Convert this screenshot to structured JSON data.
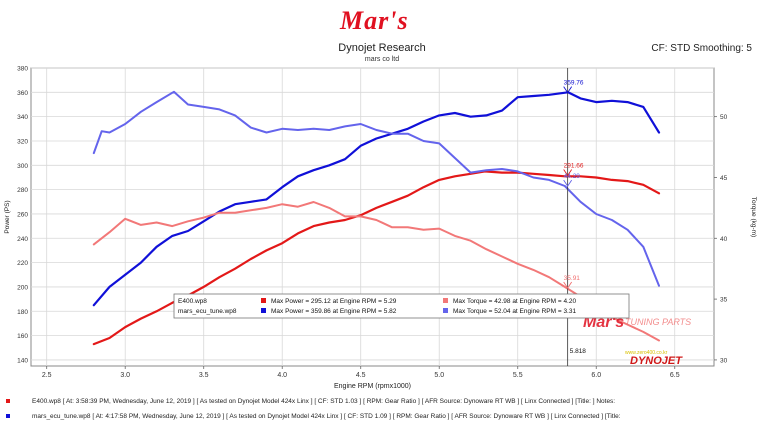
{
  "header": {
    "logo_text": "Mar's",
    "title": "Dynojet Research",
    "subtitle": "mars co ltd",
    "settings": "CF: STD Smoothing: 5"
  },
  "chart_data": {
    "type": "line",
    "xlabel": "Engine RPM (rpmx1000)",
    "xlabel_note": "zero400.co.kr",
    "ylabel_left": "Power (PS)",
    "ylabel_right": "Torque (kg-m)",
    "xlim": [
      2.4,
      6.75
    ],
    "ylim_left": [
      135,
      380
    ],
    "ylim_right": [
      29.5,
      54
    ],
    "x_ticks": [
      "2.5",
      "3.0",
      "3.5",
      "4.0",
      "4.5",
      "5.0",
      "5.5",
      "6.0",
      "6.5"
    ],
    "x_tick_values": [
      2.5,
      3.0,
      3.5,
      4.0,
      4.5,
      5.0,
      5.5,
      6.0,
      6.5
    ],
    "y_left_ticks": [
      140,
      160,
      180,
      200,
      220,
      240,
      260,
      280,
      300,
      320,
      340,
      360,
      380
    ],
    "y_right_ticks": [
      30,
      35,
      40,
      45,
      50
    ],
    "grid": true,
    "legend": {
      "placement": "bottom-center",
      "entries": [
        {
          "file": "E400.wp8",
          "power": "Max Power = 295.12 at Engine RPM = 5.29",
          "torque": "Max Torque = 42.98 at Engine RPM = 4.20"
        },
        {
          "file": "mars_ecu_tune.wp8",
          "power": "Max Power = 359.86 at Engine RPM = 5.82",
          "torque": "Max Torque = 52.04 at Engine RPM = 3.31"
        }
      ]
    },
    "cursor": {
      "x": 5.818,
      "label": "5.818",
      "readouts": [
        {
          "text": "359.76",
          "x": 5.818,
          "y": 359.76,
          "axis": "left",
          "color": "#1010d0"
        },
        {
          "text": "291.66",
          "x": 5.818,
          "y": 291.66,
          "axis": "left",
          "color": "#e02020"
        },
        {
          "text": "44.29",
          "x": 5.818,
          "y": 44.29,
          "axis": "right",
          "color": "#6060e8"
        },
        {
          "text": "35.91",
          "x": 5.818,
          "y": 35.91,
          "axis": "right",
          "color": "#f07070"
        }
      ]
    },
    "series": [
      {
        "name": "E400.wp8 Power",
        "axis": "left",
        "color": "#e31818",
        "width": 2.2,
        "x": [
          2.8,
          2.9,
          3.0,
          3.1,
          3.2,
          3.3,
          3.4,
          3.5,
          3.6,
          3.7,
          3.8,
          3.9,
          4.0,
          4.1,
          4.2,
          4.3,
          4.4,
          4.5,
          4.6,
          4.7,
          4.8,
          4.9,
          5.0,
          5.1,
          5.2,
          5.29,
          5.4,
          5.5,
          5.6,
          5.7,
          5.8,
          5.9,
          6.0,
          6.1,
          6.2,
          6.3,
          6.4
        ],
        "y": [
          153,
          158,
          167,
          174,
          180,
          187,
          193,
          200,
          208,
          215,
          223,
          230,
          236,
          244,
          250,
          253,
          255,
          259,
          265,
          270,
          275,
          282,
          288,
          291,
          293,
          295,
          294,
          294,
          293,
          292,
          291,
          291,
          290,
          288,
          287,
          284,
          277
        ]
      },
      {
        "name": "mars_ecu_tune.wp8 Power",
        "axis": "left",
        "color": "#1010d8",
        "width": 2.2,
        "x": [
          2.8,
          2.9,
          3.0,
          3.1,
          3.2,
          3.3,
          3.4,
          3.5,
          3.6,
          3.7,
          3.8,
          3.9,
          4.0,
          4.1,
          4.2,
          4.3,
          4.4,
          4.5,
          4.6,
          4.7,
          4.8,
          4.9,
          5.0,
          5.1,
          5.2,
          5.3,
          5.4,
          5.5,
          5.6,
          5.7,
          5.82,
          5.9,
          6.0,
          6.1,
          6.2,
          6.3,
          6.4
        ],
        "y": [
          185,
          200,
          210,
          220,
          233,
          242,
          246,
          254,
          262,
          268,
          270,
          272,
          282,
          291,
          296,
          300,
          305,
          316,
          322,
          326,
          330,
          336,
          341,
          343,
          340,
          341,
          345,
          356,
          357,
          358,
          360,
          355,
          352,
          353,
          352,
          348,
          327
        ]
      },
      {
        "name": "E400.wp8 Torque",
        "axis": "right",
        "color": "#f27878",
        "width": 2.0,
        "x": [
          2.8,
          2.9,
          3.0,
          3.1,
          3.2,
          3.3,
          3.4,
          3.5,
          3.6,
          3.7,
          3.8,
          3.9,
          4.0,
          4.1,
          4.2,
          4.3,
          4.4,
          4.5,
          4.6,
          4.7,
          4.8,
          4.9,
          5.0,
          5.1,
          5.2,
          5.3,
          5.4,
          5.5,
          5.6,
          5.7,
          5.8,
          5.9,
          6.0,
          6.1,
          6.2,
          6.3,
          6.4
        ],
        "y": [
          39.5,
          40.5,
          41.6,
          41.1,
          41.3,
          41.0,
          41.4,
          41.7,
          42.1,
          42.1,
          42.3,
          42.5,
          42.8,
          42.6,
          42.98,
          42.5,
          41.8,
          41.8,
          41.5,
          40.9,
          40.9,
          40.7,
          40.8,
          40.2,
          39.8,
          39.1,
          38.5,
          37.9,
          37.4,
          36.8,
          36.0,
          35.2,
          34.2,
          33.5,
          32.9,
          32.3,
          31.6
        ]
      },
      {
        "name": "mars_ecu_tune.wp8 Torque",
        "axis": "right",
        "color": "#6464ec",
        "width": 2.0,
        "x": [
          2.8,
          2.85,
          2.9,
          3.0,
          3.1,
          3.2,
          3.31,
          3.4,
          3.5,
          3.6,
          3.7,
          3.8,
          3.9,
          4.0,
          4.1,
          4.2,
          4.3,
          4.4,
          4.5,
          4.6,
          4.7,
          4.8,
          4.9,
          5.0,
          5.1,
          5.2,
          5.3,
          5.4,
          5.5,
          5.6,
          5.7,
          5.8,
          5.9,
          6.0,
          6.1,
          6.2,
          6.3,
          6.4
        ],
        "y": [
          47.0,
          48.8,
          48.7,
          49.4,
          50.4,
          51.2,
          52.04,
          51.0,
          50.8,
          50.6,
          50.1,
          49.1,
          48.7,
          49.0,
          48.9,
          49.0,
          48.9,
          49.2,
          49.4,
          48.9,
          48.6,
          48.6,
          48.0,
          47.8,
          46.6,
          45.4,
          45.6,
          45.7,
          45.5,
          45.0,
          44.8,
          44.3,
          43.0,
          42.0,
          41.5,
          40.7,
          39.3,
          36.1
        ]
      }
    ]
  },
  "watermark": {
    "mars_text": "Mar's",
    "tuning_text": "TUNING PARTS",
    "site_text": "www.zero400.co.kr",
    "brand_text": "DYNOJET"
  },
  "footer": {
    "rows": [
      {
        "color": "#e31818",
        "text": "E400.wp8 [ At: 3:58:39 PM, Wednesday, June 12, 2019 ] [ As tested on Dynojet Model 424x Linx ] [ CF: STD 1.03 ] [ RPM: Gear Ratio ] [ AFR Source: Dynoware RT WB ] [ Linx Connected ] [Title: ]  Notes:"
      },
      {
        "color": "#1010d8",
        "text": "mars_ecu_tune.wp8 [ At: 4:17:58 PM, Wednesday, June 12, 2019 ] [ As tested on Dynojet Model 424x Linx ] [ CF: STD 1.09 ] [ RPM: Gear Ratio ] [ AFR Source: Dynoware RT WB ] [ Linx Connected ] [Title:"
      }
    ]
  }
}
